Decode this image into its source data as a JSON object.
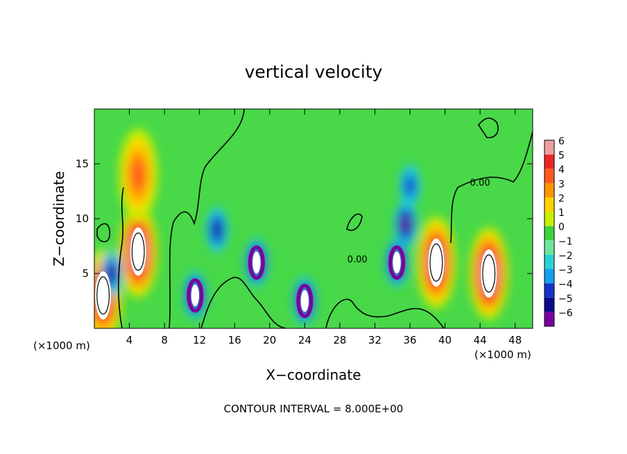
{
  "chart_data": {
    "type": "heatmap",
    "title": "vertical velocity",
    "xlabel": "X−coordinate",
    "ylabel": "Z−coordinate",
    "x_unit_left": "(×1000 m)",
    "x_unit_right": "(×1000 m)",
    "footer": "CONTOUR INTERVAL = 8.000E+00",
    "xlim": [
      0,
      50
    ],
    "ylim": [
      0,
      20
    ],
    "x_ticks": [
      4,
      8,
      12,
      16,
      20,
      24,
      28,
      32,
      36,
      40,
      44,
      48
    ],
    "y_ticks": [
      5,
      10,
      15
    ],
    "x_tick_labels": [
      "4",
      "8",
      "12",
      "16",
      "20",
      "24",
      "28",
      "32",
      "36",
      "40",
      "44",
      "48"
    ],
    "y_tick_labels": [
      "5",
      "10",
      "15"
    ],
    "colorbar": {
      "levels": [
        6,
        5,
        4,
        3,
        2,
        1,
        0,
        -1,
        -2,
        -3,
        -4,
        -5,
        -6
      ],
      "labels": [
        "6",
        "5",
        "4",
        "3",
        "2",
        "1",
        "0",
        "−1",
        "−2",
        "−3",
        "−4",
        "−5",
        "−6"
      ],
      "colors": [
        "#f0a0a0",
        "#e82828",
        "#ff5a1e",
        "#ff9600",
        "#ffd200",
        "#c8f000",
        "#3cd23c",
        "#6ee69b",
        "#28d2d2",
        "#14a0f0",
        "#1432c8",
        "#0a0a8c",
        "#7800a0"
      ]
    },
    "contour_labels": [
      {
        "text": "0.00",
        "x": 44,
        "y": 13
      },
      {
        "text": "0.00",
        "x": 30,
        "y": 6
      }
    ],
    "features": [
      {
        "name": "updraft-core",
        "x": 5,
        "z": 7,
        "value": 8
      },
      {
        "name": "updraft-core",
        "x": 45,
        "z": 5,
        "value": 8
      },
      {
        "name": "updraft-core",
        "x": 39,
        "z": 6,
        "value": 7
      },
      {
        "name": "updraft-core",
        "x": 1,
        "z": 3,
        "value": 7
      },
      {
        "name": "upper-positive",
        "x": 5,
        "z": 14,
        "value": 4
      },
      {
        "name": "downdraft",
        "x": 11.5,
        "z": 3,
        "value": -7
      },
      {
        "name": "downdraft",
        "x": 18.5,
        "z": 6,
        "value": -7
      },
      {
        "name": "downdraft",
        "x": 24,
        "z": 2.5,
        "value": -7
      },
      {
        "name": "downdraft",
        "x": 34.5,
        "z": 6,
        "value": -7
      },
      {
        "name": "downdraft",
        "x": 35.5,
        "z": 9.5,
        "value": -6
      },
      {
        "name": "downdraft",
        "x": 14,
        "z": 9,
        "value": -5
      },
      {
        "name": "downdraft",
        "x": 36,
        "z": 13,
        "value": -4
      },
      {
        "name": "downdraft",
        "x": 2,
        "z": 5,
        "value": -5
      }
    ]
  }
}
